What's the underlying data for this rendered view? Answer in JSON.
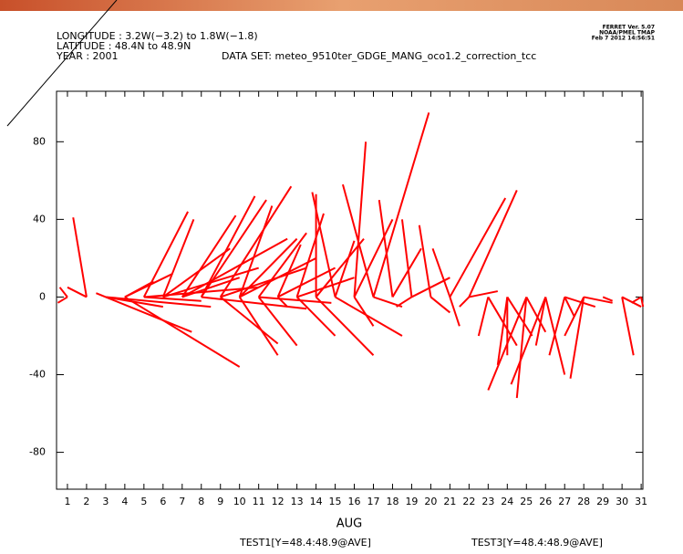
{
  "chart_data": {
    "type": "stick",
    "header": {
      "longitude": "LONGITUDE : 3.2W(−3.2) to 1.8W(−1.8)",
      "latitude": "LATITUDE : 48.4N to 48.9N",
      "year": "YEAR : 2001",
      "dataset": "DATA SET: meteo_9510ter_GDGE_MANG_oco1.2_correction_tcc",
      "stamp": [
        "FERRET Ver. 5.07",
        "NOAA/PMEL TMAP",
        "Feb 7 2012 14:56:51"
      ]
    },
    "x_label": "AUG",
    "footer": [
      "TEST1[Y=48.4:48.9@AVE]",
      "TEST3[Y=48.4:48.9@AVE]"
    ],
    "color": "#ff0000",
    "xlim": [
      0.43,
      31.09
    ],
    "ylim": [
      -99,
      106
    ],
    "xticks": [
      1,
      2,
      3,
      4,
      5,
      6,
      7,
      8,
      9,
      10,
      11,
      12,
      13,
      14,
      15,
      16,
      17,
      18,
      19,
      20,
      21,
      22,
      23,
      24,
      25,
      26,
      27,
      28,
      29,
      30,
      31
    ],
    "yticks": [
      80,
      40,
      0,
      -40,
      -80
    ],
    "x": [
      1,
      1,
      2,
      2,
      3,
      3,
      3,
      3,
      4,
      4,
      4,
      5,
      5,
      5,
      6,
      6,
      6,
      7,
      7,
      7,
      8,
      8,
      8,
      9,
      9,
      9,
      10,
      10,
      10,
      10,
      11,
      11,
      11,
      12,
      12,
      12,
      13,
      13,
      13,
      14,
      14,
      14,
      15,
      15,
      15,
      16,
      16,
      16,
      17,
      17,
      17,
      18,
      18,
      19,
      19,
      19,
      20,
      20,
      21,
      21,
      21,
      22,
      22,
      22,
      23,
      23,
      24,
      24,
      24,
      25,
      25,
      25,
      26,
      26,
      26,
      27,
      27,
      27,
      28,
      28,
      28,
      29,
      30,
      30,
      31,
      31
    ],
    "x_end": [
      0.5,
      0.6,
      1.3,
      1.0,
      2.5,
      7.5,
      6,
      8.5,
      10,
      5.5,
      6.5,
      7.3,
      8,
      11,
      7.6,
      9.5,
      11,
      9.8,
      12.5,
      10,
      11.4,
      10.8,
      13.5,
      12.7,
      13.5,
      12,
      11.7,
      13,
      14,
      12,
      13.5,
      14.8,
      13,
      12.5,
      13.2,
      15,
      14.4,
      16,
      15,
      14,
      17,
      16.5,
      13.8,
      16,
      18.5,
      16.6,
      17,
      18,
      15.4,
      19.9,
      18.5,
      17.3,
      19.5,
      18.5,
      21,
      18.2,
      19.4,
      21,
      20.1,
      23.9,
      21.5,
      24.5,
      21.5,
      23.5,
      22.5,
      24.5,
      23.5,
      24,
      25.3,
      23,
      24.5,
      26,
      24.2,
      25.5,
      27,
      26.2,
      27.5,
      28.6,
      27.3,
      27,
      29.5,
      29.5,
      30.6,
      31,
      31.1,
      30.5
    ],
    "values": [
      -3,
      5,
      41,
      5,
      2,
      -18,
      -5,
      -5,
      -36,
      8,
      12,
      44,
      -2,
      5,
      40,
      25,
      15,
      42,
      30,
      10,
      50,
      52,
      -6,
      57,
      15,
      -24,
      47,
      30,
      20,
      -30,
      33,
      -3,
      -25,
      -5,
      27,
      15,
      43,
      10,
      -20,
      53,
      -30,
      30,
      54,
      29,
      -20,
      80,
      -15,
      40,
      58,
      95,
      -5,
      50,
      25,
      40,
      10,
      -5,
      37,
      -8,
      25,
      51,
      -15,
      55,
      -5,
      3,
      -20,
      -25,
      -35,
      -30,
      -20,
      -48,
      -52,
      -18,
      -45,
      -25,
      -40,
      -30,
      -10,
      -5,
      -42,
      -20,
      -3,
      -2,
      -30,
      -5,
      -5,
      -3
    ]
  }
}
